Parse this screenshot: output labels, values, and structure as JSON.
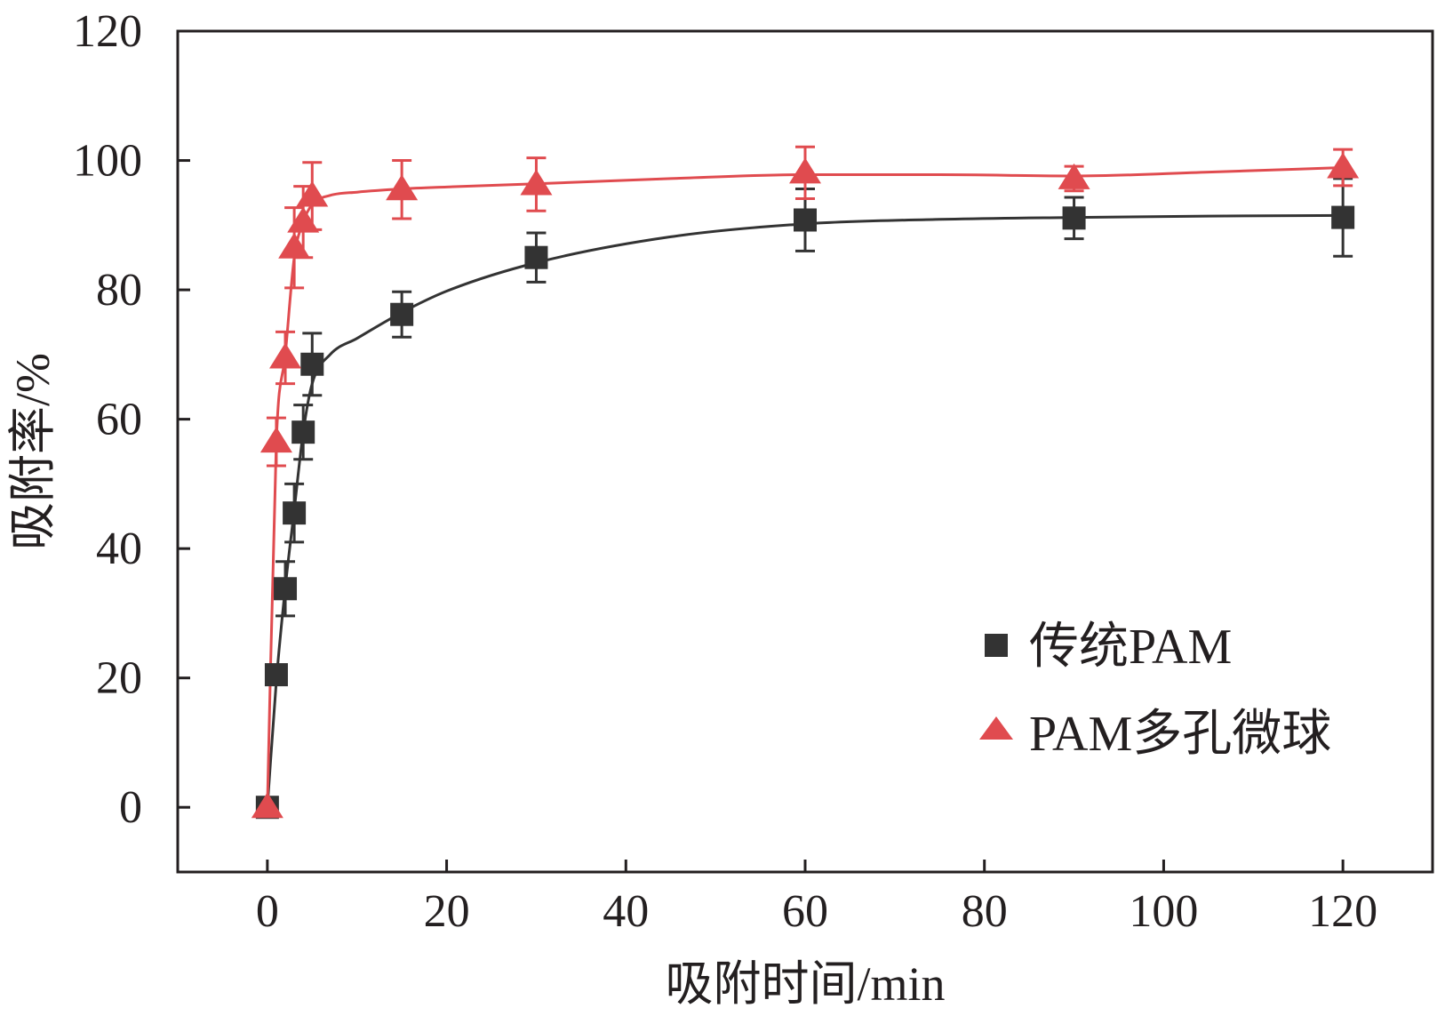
{
  "chart_data": {
    "type": "scatter",
    "title": "",
    "xlabel": "吸附时间/min",
    "ylabel": "吸附率/%",
    "xlim": [
      -10,
      130
    ],
    "ylim": [
      -10,
      120
    ],
    "xticks": [
      0,
      20,
      40,
      60,
      80,
      100,
      120
    ],
    "yticks": [
      0,
      20,
      40,
      60,
      80,
      100,
      120
    ],
    "xtick_labels": [
      "0",
      "20",
      "40",
      "60",
      "80",
      "100",
      "120"
    ],
    "ytick_labels": [
      "0",
      "20",
      "40",
      "60",
      "80",
      "100",
      "120"
    ],
    "grid": false,
    "legend_position": "lower-right",
    "series": [
      {
        "name": "传统PAM",
        "marker": "square",
        "color": "#333333",
        "x": [
          0,
          1,
          2,
          3,
          4,
          5,
          15,
          30,
          60,
          90,
          120
        ],
        "y": [
          0,
          20.5,
          33.8,
          45.5,
          58,
          68.5,
          76.2,
          85,
          90.8,
          91.1,
          91.2
        ],
        "err": [
          1.2,
          1.5,
          4.2,
          4.5,
          4.2,
          4.8,
          3.5,
          3.8,
          4.8,
          3.2,
          6
        ],
        "fit_curve": {
          "x": [
            0,
            1,
            2,
            3,
            4,
            5,
            7,
            10,
            15,
            20,
            30,
            45,
            60,
            75,
            90,
            105,
            120
          ],
          "y": [
            0,
            19.5,
            34,
            46,
            58,
            65.5,
            70,
            72.5,
            76.5,
            79.8,
            84.2,
            88.2,
            90.2,
            90.9,
            91.2,
            91.4,
            91.5
          ]
        }
      },
      {
        "name": "PAM多孔微球",
        "marker": "triangle",
        "color": "#e04b4f",
        "x": [
          0,
          1,
          2,
          3,
          4,
          5,
          15,
          30,
          60,
          90,
          120
        ],
        "y": [
          0,
          56.5,
          69.5,
          86.5,
          90.5,
          94.5,
          95.5,
          96.3,
          98.1,
          97.2,
          98.9
        ],
        "err": [
          1,
          3.7,
          4,
          6.2,
          5.5,
          5.2,
          4.5,
          4.1,
          4,
          1.9,
          2.8
        ],
        "fit_curve": {
          "x": [
            0,
            1,
            2,
            3,
            4,
            5,
            7,
            10,
            15,
            20,
            30,
            45,
            60,
            75,
            90,
            105,
            120
          ],
          "y": [
            0,
            56.5,
            70,
            85,
            90.5,
            93.2,
            94.6,
            95.1,
            95.6,
            95.9,
            96.4,
            97.2,
            97.8,
            97.8,
            97.6,
            98.2,
            98.9
          ]
        }
      }
    ]
  }
}
